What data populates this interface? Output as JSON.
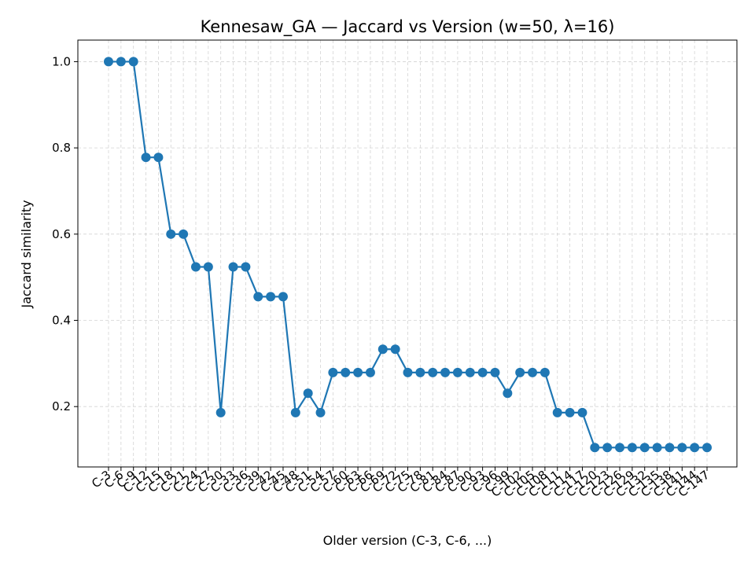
{
  "chart_data": {
    "type": "line",
    "title": "Kennesaw_GA — Jaccard vs Version (w=50, λ=16)",
    "xlabel": "Older version (C-3, C-6, ...)",
    "ylabel": "Jaccard similarity",
    "ylim": [
      0.06,
      1.05
    ],
    "yticks": [
      "0.2",
      "0.4",
      "0.6",
      "0.8",
      "1.0"
    ],
    "grid": true,
    "categories": [
      "C-3",
      "C-6",
      "C-9",
      "C-12",
      "C-15",
      "C-18",
      "C-21",
      "C-24",
      "C-27",
      "C-30",
      "C-33",
      "C-36",
      "C-39",
      "C-42",
      "C-45",
      "C-48",
      "C-51",
      "C-54",
      "C-57",
      "C-60",
      "C-63",
      "C-66",
      "C-69",
      "C-72",
      "C-75",
      "C-78",
      "C-81",
      "C-84",
      "C-87",
      "C-90",
      "C-93",
      "C-96",
      "C-99",
      "C-102",
      "C-105",
      "C-108",
      "C-111",
      "C-114",
      "C-117",
      "C-120",
      "C-123",
      "C-126",
      "C-129",
      "C-132",
      "C-135",
      "C-138",
      "C-141",
      "C-144",
      "C-147"
    ],
    "series": [
      {
        "color": "#1f77b4",
        "values": [
          1.0,
          1.0,
          1.0,
          0.778,
          0.778,
          0.6,
          0.6,
          0.524,
          0.524,
          0.186,
          0.524,
          0.524,
          0.455,
          0.455,
          0.455,
          0.186,
          0.231,
          0.186,
          0.279,
          0.279,
          0.279,
          0.279,
          0.333,
          0.333,
          0.279,
          0.279,
          0.279,
          0.279,
          0.279,
          0.279,
          0.279,
          0.279,
          0.231,
          0.279,
          0.279,
          0.279,
          0.186,
          0.186,
          0.186,
          0.105,
          0.105,
          0.105,
          0.105,
          0.105,
          0.105,
          0.105,
          0.105,
          0.105,
          0.105
        ]
      }
    ]
  }
}
